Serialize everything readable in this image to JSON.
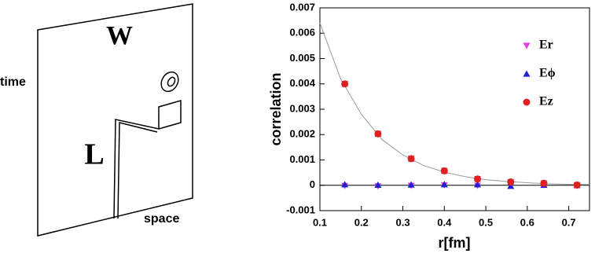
{
  "diagram": {
    "plane_label": "W",
    "loop_label": "L",
    "vertical_axis": "time",
    "horizontal_axis": "space"
  },
  "chart_data": {
    "type": "scatter",
    "x_label": "r[fm]",
    "y_label": "correlation",
    "x": [
      0.16,
      0.24,
      0.32,
      0.4,
      0.48,
      0.56,
      0.64,
      0.72
    ],
    "series": [
      {
        "name": "Er",
        "color": "#e040e0",
        "marker": "triangle-down",
        "values": [
          -2e-05,
          -3e-05,
          -1e-05,
          1e-05,
          -1e-05,
          2e-05,
          1e-05,
          -2e-05
        ]
      },
      {
        "name": "Eϕ",
        "color": "#2020d0",
        "marker": "triangle-up",
        "values": [
          3e-05,
          1e-05,
          2e-05,
          3e-05,
          3e-05,
          -3e-05,
          1e-05,
          0.0
        ]
      },
      {
        "name": "Ez",
        "color": "#e02020",
        "marker": "circle",
        "values": [
          0.004,
          0.00203,
          0.00105,
          0.00057,
          0.00025,
          0.00013,
          8e-05,
          1e-05
        ],
        "errors": [
          0.0001,
          0.0001,
          0.0001,
          0.0001,
          0.0001,
          0.0001,
          0.0001,
          0.0001
        ]
      }
    ],
    "fit": {
      "color": "#999999",
      "x": [
        0.1,
        0.15,
        0.2,
        0.25,
        0.3,
        0.35,
        0.4,
        0.45,
        0.5,
        0.55,
        0.6,
        0.65,
        0.7,
        0.75
      ],
      "values": [
        0.0064,
        0.0042,
        0.0028,
        0.0018,
        0.0012,
        0.00078,
        0.00052,
        0.00034,
        0.00022,
        0.00015,
        0.0001,
        6e-05,
        4e-05,
        3e-05
      ]
    },
    "xlim": [
      0.1,
      0.75
    ],
    "ylim": [
      -0.001,
      0.007
    ],
    "xticks": [
      0.1,
      0.2,
      0.3,
      0.4,
      0.5,
      0.6,
      0.7
    ],
    "yticks": [
      -0.001,
      0,
      0.001,
      0.002,
      0.003,
      0.004,
      0.005,
      0.006,
      0.007
    ],
    "legend": "upper right"
  }
}
